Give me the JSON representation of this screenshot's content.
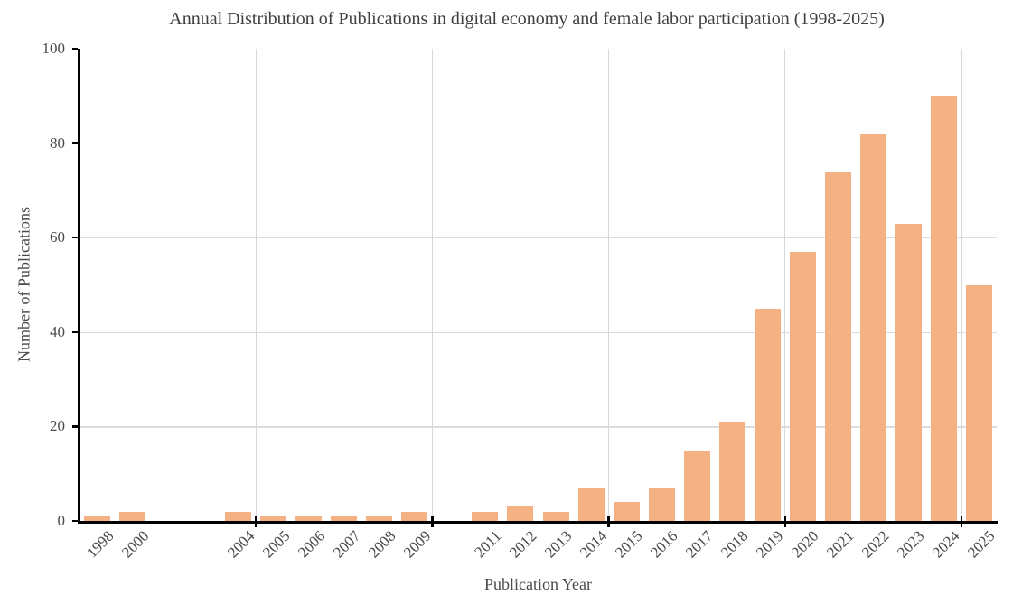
{
  "chart_data": {
    "type": "bar",
    "title": "Annual Distribution of Publications in digital economy and female labor participation (1998-2025)",
    "xlabel": "Publication Year",
    "ylabel": "Number of Publications",
    "categories": [
      "1998",
      "2000",
      "",
      "",
      "2004",
      "2005",
      "2006",
      "2007",
      "2008",
      "2009",
      "",
      "2011",
      "2012",
      "2013",
      "2014",
      "2015",
      "2016",
      "2017",
      "2018",
      "2019",
      "2020",
      "2021",
      "2022",
      "2023",
      "2024",
      "2025"
    ],
    "values": [
      1,
      2,
      0,
      0,
      2,
      1,
      1,
      1,
      1,
      2,
      0,
      2,
      3,
      2,
      7,
      4,
      7,
      15,
      21,
      45,
      57,
      74,
      82,
      63,
      90,
      50
    ],
    "ylim": [
      0,
      100
    ],
    "yticks": [
      0,
      20,
      40,
      60,
      80,
      100
    ],
    "x_gridline_boundaries": [
      5,
      10,
      15,
      20,
      25
    ],
    "grid": "on",
    "legend": "none",
    "bar_color": "#F4B183",
    "h_grid_color": "#DCDCDC",
    "v_grid_color": "#D8D8D8",
    "axis_color": "#000000",
    "text_color": "#4A4A4A",
    "title_color": "#3F3F3F"
  }
}
